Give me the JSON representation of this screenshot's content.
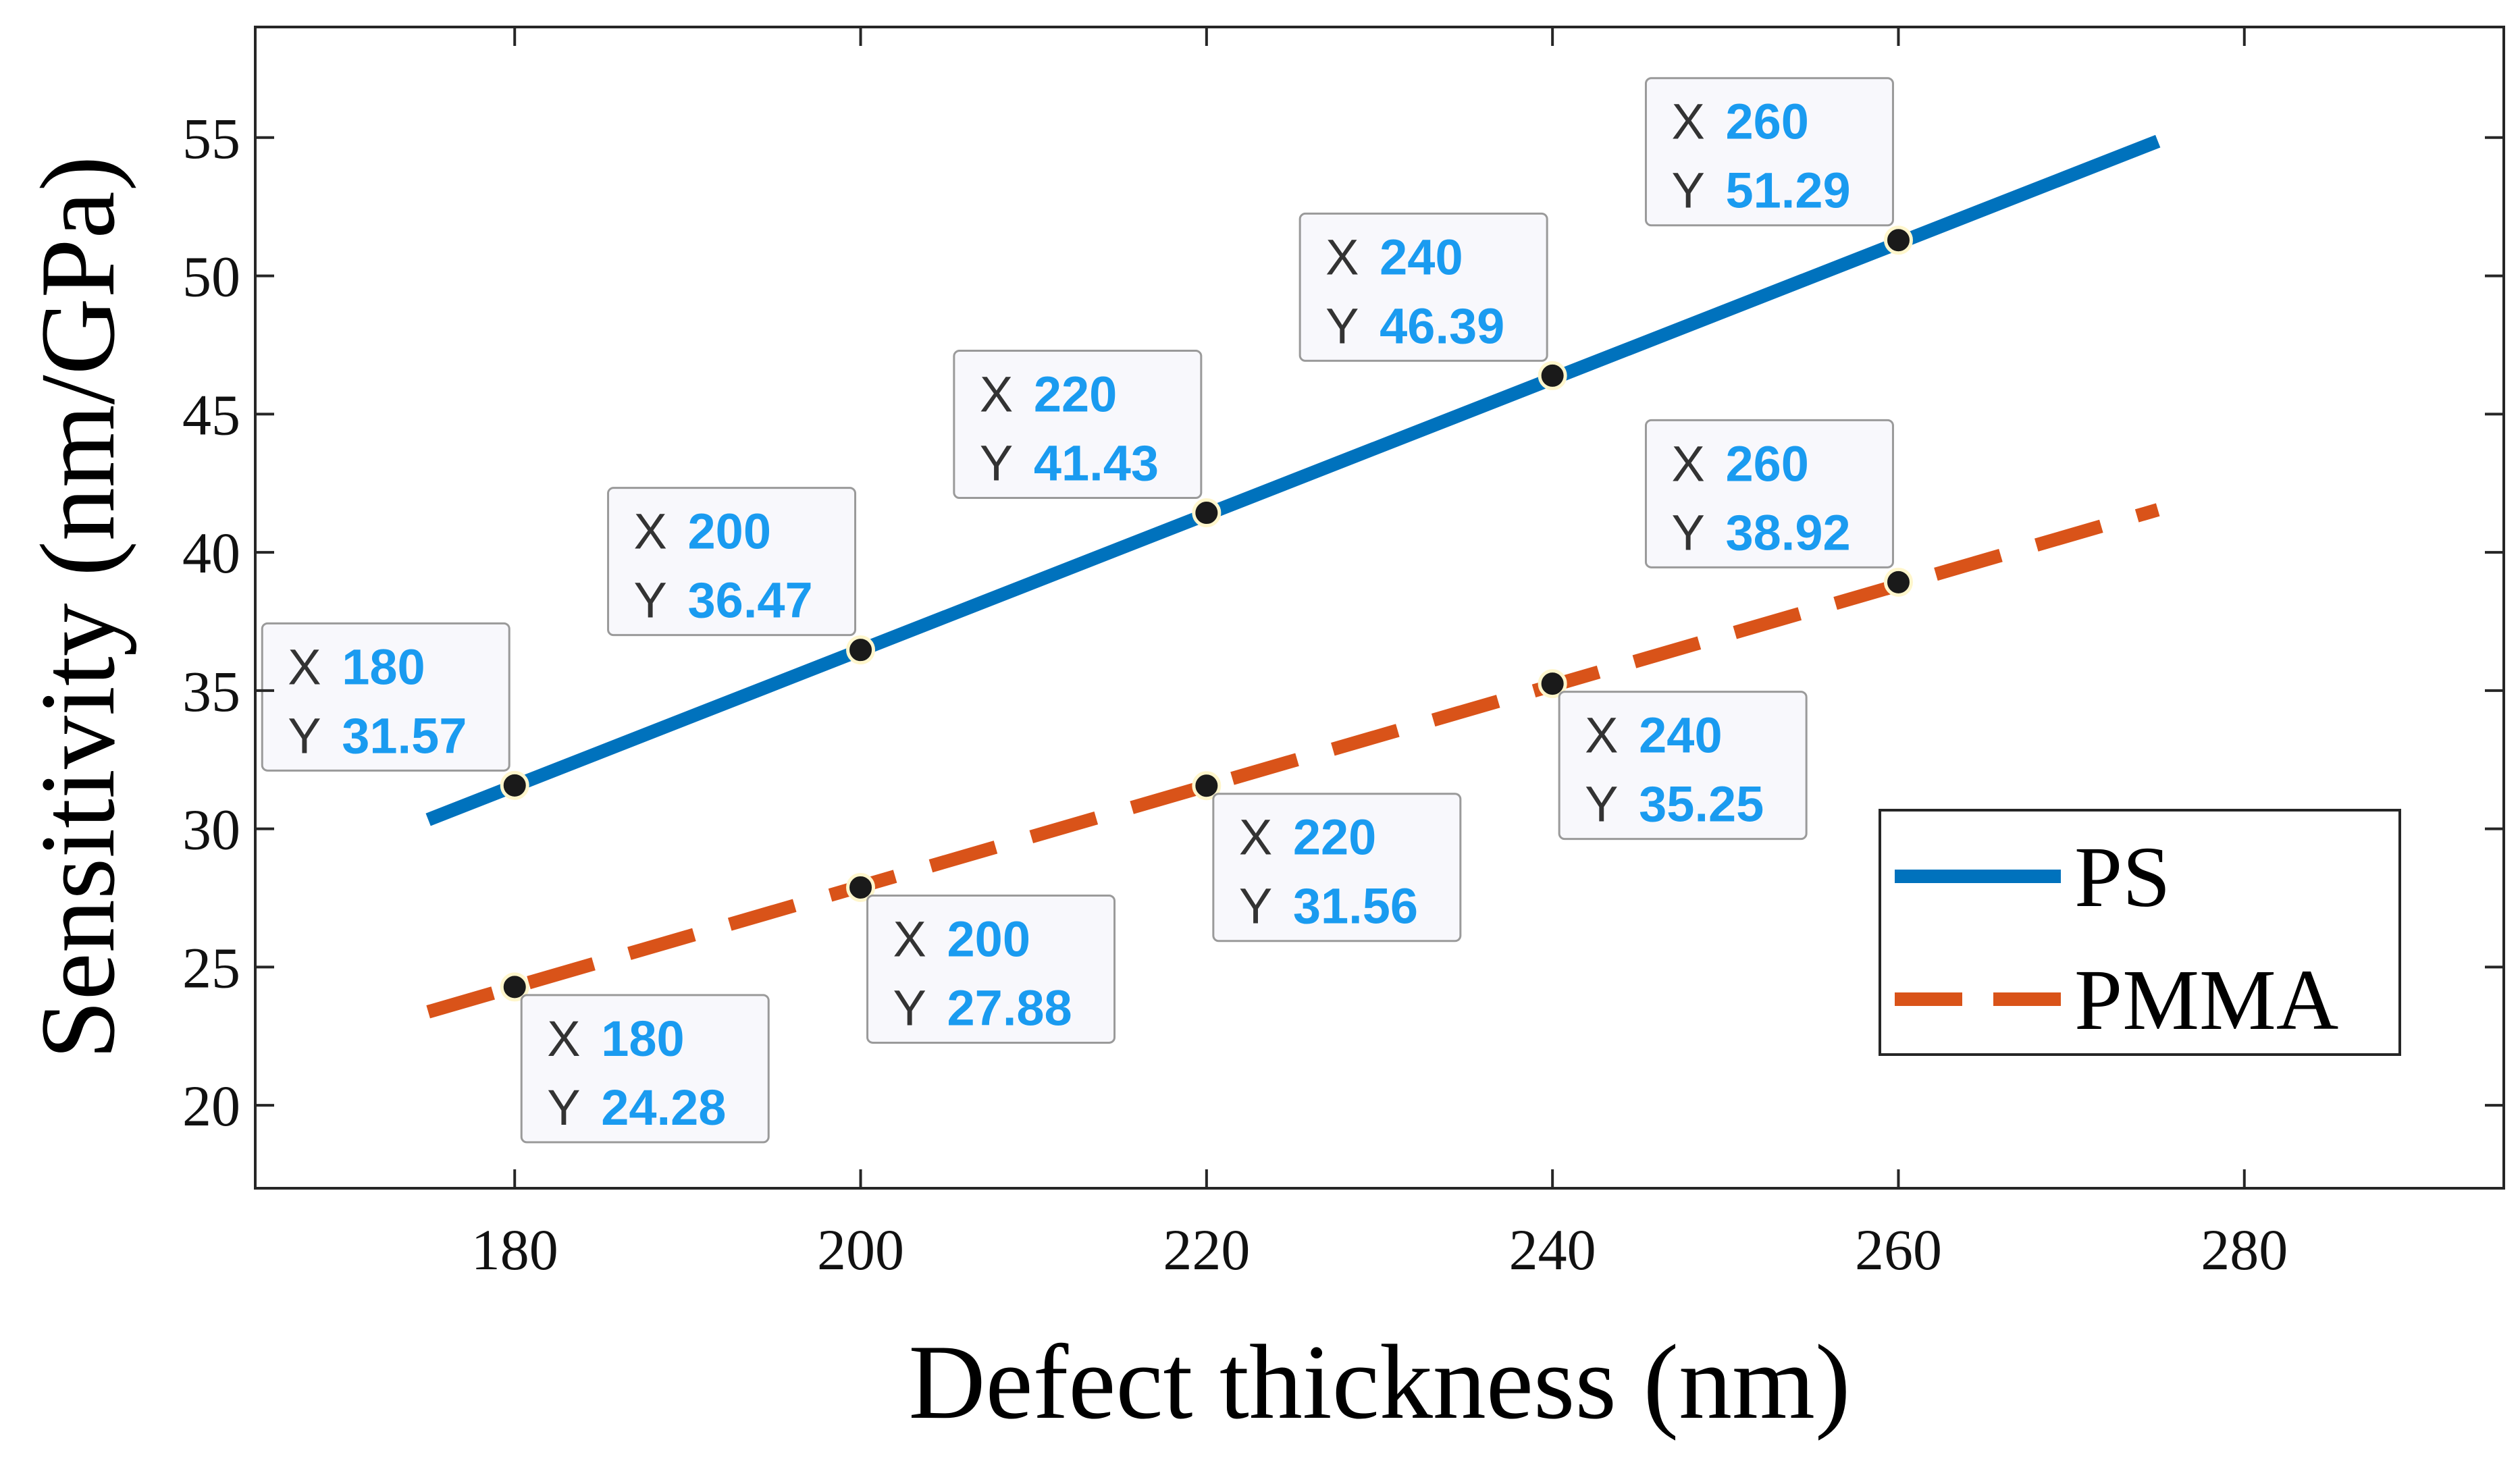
{
  "chart_data": {
    "type": "line",
    "xlabel": "Defect thickness (nm)",
    "ylabel": "Sensitivity (nm/GPa)",
    "xlim": [
      165,
      295
    ],
    "ylim": [
      17,
      59
    ],
    "xticks": [
      180,
      200,
      220,
      240,
      260,
      280
    ],
    "yticks": [
      20,
      25,
      30,
      35,
      40,
      45,
      50,
      55
    ],
    "legend_position": "bottom-right",
    "series": [
      {
        "name": "PS",
        "color": "#0072bd",
        "style": "solid",
        "line_x": [
          175,
          275
        ],
        "line_y": [
          30.33,
          54.87
        ],
        "points": [
          {
            "x": 180,
            "y": 31.57,
            "x_label": "180",
            "y_label": "31.57",
            "tip": "above-left"
          },
          {
            "x": 200,
            "y": 36.47,
            "x_label": "200",
            "y_label": "36.47",
            "tip": "above-left"
          },
          {
            "x": 220,
            "y": 41.43,
            "x_label": "220",
            "y_label": "41.43",
            "tip": "above-left"
          },
          {
            "x": 240,
            "y": 46.39,
            "x_label": "240",
            "y_label": "46.39",
            "tip": "above-left"
          },
          {
            "x": 260,
            "y": 51.29,
            "x_label": "260",
            "y_label": "51.29",
            "tip": "above-left"
          }
        ]
      },
      {
        "name": "PMMA",
        "color": "#d95319",
        "style": "dashed",
        "line_x": [
          175,
          275
        ],
        "line_y": [
          23.38,
          41.54
        ],
        "points": [
          {
            "x": 180,
            "y": 24.28,
            "x_label": "180",
            "y_label": "24.28",
            "tip": "below-right"
          },
          {
            "x": 200,
            "y": 27.88,
            "x_label": "200",
            "y_label": "27.88",
            "tip": "below-right"
          },
          {
            "x": 220,
            "y": 31.56,
            "x_label": "220",
            "y_label": "31.56",
            "tip": "below-right"
          },
          {
            "x": 240,
            "y": 35.25,
            "x_label": "240",
            "y_label": "35.25",
            "tip": "below-right"
          },
          {
            "x": 260,
            "y": 38.92,
            "x_label": "260",
            "y_label": "38.92",
            "tip": "above-left"
          }
        ]
      }
    ],
    "tip_key_x": "X",
    "tip_key_y": "Y",
    "marker_color": "#1a1a1a",
    "tip_value_color": "#1a9bf0"
  }
}
